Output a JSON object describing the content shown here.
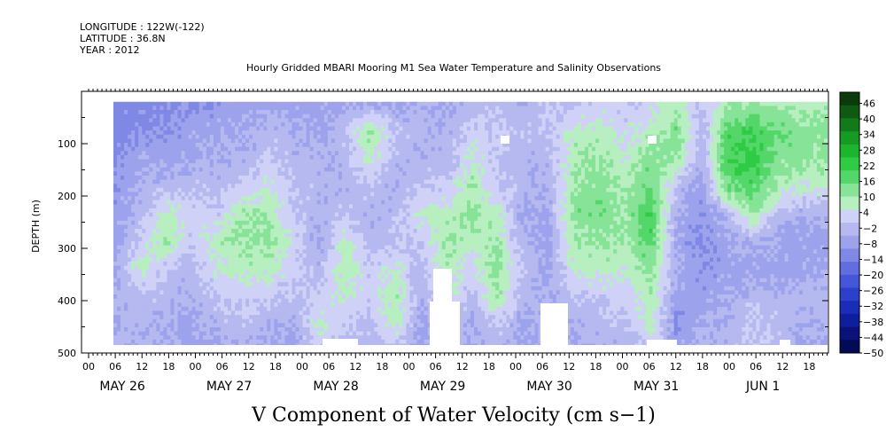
{
  "header": {
    "longitude": "LONGITUDE : 122W(-122)",
    "latitude": "LATITUDE : 36.8N",
    "year": "YEAR : 2012"
  },
  "chart_data": {
    "type": "heatmap",
    "title": "Hourly Gridded MBARI Mooring M1 Sea Water Temperature and Salinity Observations",
    "xlabel": "V Component of Water Velocity (cm s−1)",
    "ylabel": "DEPTH (m)",
    "ylim": [
      500,
      0
    ],
    "y_ticks": [
      "100",
      "200",
      "300",
      "400",
      "500"
    ],
    "x_hour_ticks": [
      "00",
      "06",
      "12",
      "18",
      "00",
      "06",
      "12",
      "18",
      "00",
      "06",
      "12",
      "18",
      "00",
      "06",
      "12",
      "18",
      "00",
      "06",
      "12",
      "18",
      "00",
      "06",
      "12",
      "18",
      "00",
      "06",
      "12",
      "18"
    ],
    "x_day_labels": [
      "MAY 26",
      "MAY 27",
      "MAY 28",
      "MAY 29",
      "MAY 30",
      "MAY 31",
      "JUN  1"
    ],
    "colorbar": {
      "labels": [
        "46",
        "40",
        "34",
        "28",
        "22",
        "16",
        "10",
        "4",
        "−2",
        "−8",
        "−14",
        "−20",
        "−26",
        "−32",
        "−38",
        "−44",
        "−50"
      ],
      "colors": [
        "#0b3a0b",
        "#0e5a12",
        "#117a1a",
        "#159a24",
        "#1cb52e",
        "#2fcb45",
        "#52d768",
        "#86e397",
        "#b8efc0",
        "#cfd2f6",
        "#b5b9f0",
        "#9ca2ec",
        "#8088e6",
        "#626de0",
        "#4656d8",
        "#2d40cc",
        "#1a2cb8",
        "#0e1e9c",
        "#0a127a",
        "#050a55"
      ]
    },
    "data_columns": [
      {
        "t": 6,
        "v": [
          -20,
          -20,
          -18,
          -16,
          -14,
          -14,
          -12,
          -10,
          -10,
          -8
        ]
      },
      {
        "t": 12,
        "v": [
          -20,
          -18,
          -12,
          -10,
          -8,
          -4,
          4,
          -6,
          -8,
          -10
        ]
      },
      {
        "t": 18,
        "v": [
          -18,
          -16,
          -14,
          -8,
          4,
          8,
          -6,
          -8,
          -10,
          -12
        ]
      },
      {
        "t": 24,
        "v": [
          -16,
          -14,
          -12,
          -6,
          -2,
          -4,
          -8,
          -10,
          -12,
          -14
        ]
      },
      {
        "t": 30,
        "v": [
          -16,
          -12,
          -10,
          -8,
          -4,
          4,
          2,
          -4,
          -8,
          -12
        ]
      },
      {
        "t": 36,
        "v": [
          -14,
          -12,
          -10,
          -4,
          6,
          8,
          4,
          -2,
          -6,
          -10
        ]
      },
      {
        "t": 42,
        "v": [
          -14,
          -8,
          -4,
          2,
          6,
          10,
          4,
          -4,
          -10,
          -12
        ]
      },
      {
        "t": 48,
        "v": [
          -14,
          -10,
          -8,
          -6,
          -4,
          -2,
          -2,
          -6,
          -10,
          -14
        ]
      },
      {
        "t": 54,
        "v": [
          -14,
          -12,
          -10,
          -8,
          -10,
          -12,
          -8,
          -4,
          2,
          -4
        ]
      },
      {
        "t": 60,
        "v": [
          -12,
          -6,
          -8,
          -10,
          -6,
          4,
          6,
          2,
          -4,
          -8
        ]
      },
      {
        "t": 66,
        "v": [
          -10,
          8,
          4,
          -6,
          -10,
          -8,
          -4,
          -2,
          -6,
          -10
        ]
      },
      {
        "t": 72,
        "v": [
          -12,
          -6,
          -8,
          -10,
          -8,
          -6,
          2,
          6,
          4,
          -6
        ]
      },
      {
        "t": 78,
        "v": [
          -10,
          -8,
          -10,
          -6,
          2,
          -4,
          -8,
          -10,
          -12,
          -14
        ]
      },
      {
        "t": 84,
        "v": [
          -12,
          -10,
          -8,
          -4,
          4,
          8,
          6,
          2,
          -6,
          -10
        ]
      },
      {
        "t": 90,
        "v": [
          -8,
          -2,
          2,
          6,
          8,
          4,
          -2,
          -6,
          -10,
          -12
        ]
      },
      {
        "t": 96,
        "v": [
          -8,
          -4,
          -6,
          -4,
          2,
          6,
          10,
          6,
          -4,
          -8
        ]
      },
      {
        "t": 102,
        "v": [
          -10,
          -6,
          -10,
          -8,
          -12,
          -10,
          -6,
          -10,
          -12,
          -14
        ]
      },
      {
        "t": 108,
        "v": [
          -4,
          -6,
          -8,
          -10,
          -12,
          -14,
          -12,
          -10,
          -8,
          -10
        ]
      },
      {
        "t": 114,
        "v": [
          -6,
          2,
          6,
          8,
          10,
          6,
          2,
          -6,
          -10,
          -12
        ]
      },
      {
        "t": 120,
        "v": [
          -2,
          4,
          8,
          10,
          12,
          8,
          4,
          -4,
          -8,
          -10
        ]
      },
      {
        "t": 126,
        "v": [
          -4,
          -2,
          2,
          6,
          8,
          6,
          2,
          -2,
          -6,
          -8
        ]
      },
      {
        "t": 132,
        "v": [
          -2,
          4,
          10,
          14,
          18,
          16,
          10,
          6,
          4,
          -4
        ]
      },
      {
        "t": 138,
        "v": [
          4,
          12,
          8,
          -6,
          -10,
          -12,
          -10,
          -14,
          -16,
          -14
        ]
      },
      {
        "t": 144,
        "v": [
          -6,
          -8,
          -12,
          -14,
          -16,
          -18,
          -16,
          -14,
          -12,
          -10
        ]
      },
      {
        "t": 150,
        "v": [
          6,
          16,
          18,
          14,
          -8,
          -12,
          -14,
          -12,
          -10,
          -8
        ]
      },
      {
        "t": 156,
        "v": [
          8,
          18,
          22,
          16,
          10,
          -10,
          -12,
          -8,
          -4,
          -6
        ]
      },
      {
        "t": 162,
        "v": [
          6,
          14,
          10,
          6,
          -8,
          -12,
          -14,
          -10,
          -6,
          -8
        ]
      },
      {
        "t": 168,
        "v": [
          4,
          10,
          8,
          2,
          -10,
          -14,
          -12,
          -8,
          -10,
          -12
        ]
      }
    ]
  }
}
